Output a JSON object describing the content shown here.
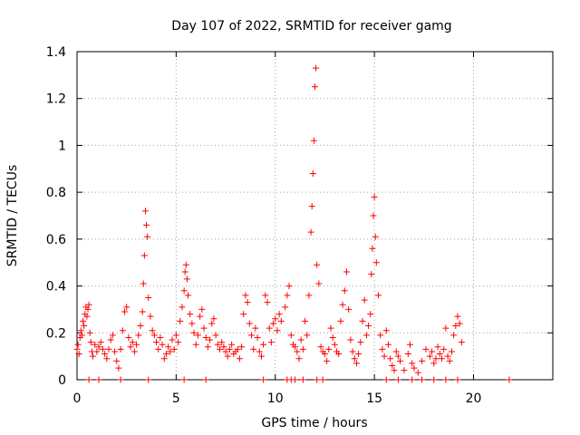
{
  "colors": {
    "series": "#ff0000",
    "grid": "#a0a0a0",
    "axis": "#000000",
    "background": "#ffffff"
  },
  "chart_data": {
    "type": "scatter",
    "marker": "plus",
    "title": "Day 107 of 2022, SRMTID for receiver gamg",
    "xlabel": "GPS time / hours",
    "ylabel": "SRMTID / TECUs",
    "xlim": [
      0,
      24
    ],
    "ylim": [
      0,
      1.4
    ],
    "grid": true,
    "legend": "none",
    "x_ticks": [
      0,
      5,
      10,
      15,
      20
    ],
    "x_tick_labels": [
      "0",
      "5",
      "10",
      "15",
      "20"
    ],
    "y_ticks": [
      0,
      0.2,
      0.4,
      0.6,
      0.8,
      1.0,
      1.2,
      1.4
    ],
    "y_tick_labels": [
      "0",
      "0.2",
      "0.4",
      "0.6",
      "0.8",
      "1",
      "1.2",
      "1.4"
    ],
    "series": [
      {
        "name": "SRMTID",
        "x": [
          0.0,
          0.05,
          0.1,
          0.15,
          0.2,
          0.25,
          0.3,
          0.35,
          0.4,
          0.45,
          0.5,
          0.55,
          0.6,
          0.65,
          0.7,
          0.75,
          0.8,
          0.9,
          1.0,
          1.1,
          1.2,
          1.3,
          1.4,
          1.5,
          1.6,
          1.7,
          1.8,
          1.9,
          2.0,
          2.1,
          2.2,
          2.3,
          2.4,
          2.5,
          2.6,
          2.7,
          2.8,
          2.9,
          3.0,
          3.1,
          3.2,
          3.3,
          3.35,
          3.4,
          3.45,
          3.5,
          3.55,
          3.6,
          3.7,
          3.8,
          3.9,
          4.0,
          4.1,
          4.2,
          4.3,
          4.4,
          4.5,
          4.6,
          4.7,
          4.8,
          4.9,
          5.0,
          5.1,
          5.2,
          5.3,
          5.4,
          5.45,
          5.5,
          5.55,
          5.6,
          5.7,
          5.8,
          5.9,
          6.0,
          6.1,
          6.2,
          6.3,
          6.4,
          6.5,
          6.6,
          6.7,
          6.8,
          6.9,
          7.0,
          7.1,
          7.2,
          7.3,
          7.4,
          7.5,
          7.6,
          7.7,
          7.8,
          7.9,
          8.0,
          8.1,
          8.2,
          8.3,
          8.4,
          8.5,
          8.6,
          8.7,
          8.8,
          8.9,
          9.0,
          9.1,
          9.2,
          9.3,
          9.4,
          9.5,
          9.6,
          9.7,
          9.8,
          9.9,
          10.0,
          10.1,
          10.2,
          10.3,
          10.5,
          10.6,
          10.7,
          10.8,
          10.9,
          11.0,
          11.1,
          11.2,
          11.3,
          11.4,
          11.5,
          11.6,
          11.7,
          11.8,
          11.85,
          11.9,
          11.95,
          12.0,
          12.05,
          12.1,
          12.2,
          12.3,
          12.4,
          12.5,
          12.6,
          12.7,
          12.8,
          12.9,
          13.0,
          13.1,
          13.2,
          13.3,
          13.4,
          13.5,
          13.6,
          13.7,
          13.8,
          13.9,
          14.0,
          14.1,
          14.2,
          14.3,
          14.4,
          14.5,
          14.6,
          14.7,
          14.8,
          14.85,
          14.9,
          14.95,
          15.0,
          15.05,
          15.1,
          15.2,
          15.3,
          15.4,
          15.5,
          15.6,
          15.7,
          15.8,
          15.9,
          16.0,
          16.1,
          16.2,
          16.3,
          16.5,
          16.7,
          16.8,
          16.9,
          17.0,
          17.2,
          17.4,
          17.6,
          17.8,
          17.9,
          18.0,
          18.1,
          18.2,
          18.3,
          18.4,
          18.5,
          18.6,
          18.7,
          18.8,
          18.9,
          19.0,
          19.1,
          19.2,
          19.3,
          19.4,
          0.6,
          1.1,
          2.2,
          3.6,
          5.4,
          6.5,
          9.4,
          10.6,
          10.8,
          11.0,
          11.4,
          12.1,
          12.4,
          15.6,
          16.2,
          16.9,
          17.4,
          18.0,
          18.6,
          19.2,
          21.8
        ],
        "y": [
          0.13,
          0.15,
          0.11,
          0.18,
          0.21,
          0.19,
          0.25,
          0.23,
          0.28,
          0.31,
          0.27,
          0.3,
          0.32,
          0.2,
          0.16,
          0.12,
          0.1,
          0.15,
          0.12,
          0.14,
          0.16,
          0.13,
          0.11,
          0.09,
          0.13,
          0.17,
          0.19,
          0.12,
          0.08,
          0.05,
          0.13,
          0.21,
          0.29,
          0.31,
          0.18,
          0.14,
          0.16,
          0.12,
          0.15,
          0.19,
          0.23,
          0.29,
          0.41,
          0.53,
          0.72,
          0.66,
          0.61,
          0.35,
          0.27,
          0.21,
          0.19,
          0.16,
          0.13,
          0.18,
          0.15,
          0.09,
          0.11,
          0.14,
          0.12,
          0.17,
          0.13,
          0.19,
          0.16,
          0.25,
          0.31,
          0.38,
          0.46,
          0.49,
          0.43,
          0.36,
          0.28,
          0.24,
          0.2,
          0.15,
          0.19,
          0.27,
          0.3,
          0.22,
          0.18,
          0.14,
          0.17,
          0.24,
          0.26,
          0.19,
          0.15,
          0.13,
          0.16,
          0.14,
          0.12,
          0.1,
          0.13,
          0.15,
          0.11,
          0.12,
          0.13,
          0.09,
          0.14,
          0.28,
          0.36,
          0.33,
          0.24,
          0.19,
          0.13,
          0.22,
          0.18,
          0.12,
          0.1,
          0.15,
          0.36,
          0.33,
          0.22,
          0.16,
          0.24,
          0.26,
          0.21,
          0.28,
          0.25,
          0.31,
          0.36,
          0.4,
          0.19,
          0.15,
          0.14,
          0.12,
          0.09,
          0.17,
          0.13,
          0.25,
          0.19,
          0.36,
          0.63,
          0.74,
          0.88,
          1.02,
          1.25,
          1.33,
          0.49,
          0.41,
          0.14,
          0.12,
          0.11,
          0.08,
          0.13,
          0.22,
          0.18,
          0.15,
          0.12,
          0.11,
          0.25,
          0.32,
          0.38,
          0.46,
          0.3,
          0.17,
          0.12,
          0.09,
          0.07,
          0.11,
          0.16,
          0.25,
          0.34,
          0.19,
          0.23,
          0.28,
          0.45,
          0.56,
          0.7,
          0.78,
          0.61,
          0.5,
          0.36,
          0.19,
          0.13,
          0.1,
          0.21,
          0.15,
          0.09,
          0.06,
          0.04,
          0.12,
          0.1,
          0.08,
          0.04,
          0.11,
          0.15,
          0.07,
          0.05,
          0.03,
          0.08,
          0.13,
          0.1,
          0.12,
          0.07,
          0.09,
          0.14,
          0.11,
          0.09,
          0.13,
          0.22,
          0.1,
          0.08,
          0.12,
          0.19,
          0.23,
          0.27,
          0.24,
          0.16,
          0.0,
          0.0,
          0.0,
          0.0,
          0.0,
          0.0,
          0.0,
          0.0,
          0.0,
          0.0,
          0.0,
          0.0,
          0.0,
          0.0,
          0.0,
          0.0,
          0.0,
          0.0,
          0.0,
          0.0,
          0.0
        ]
      }
    ]
  }
}
